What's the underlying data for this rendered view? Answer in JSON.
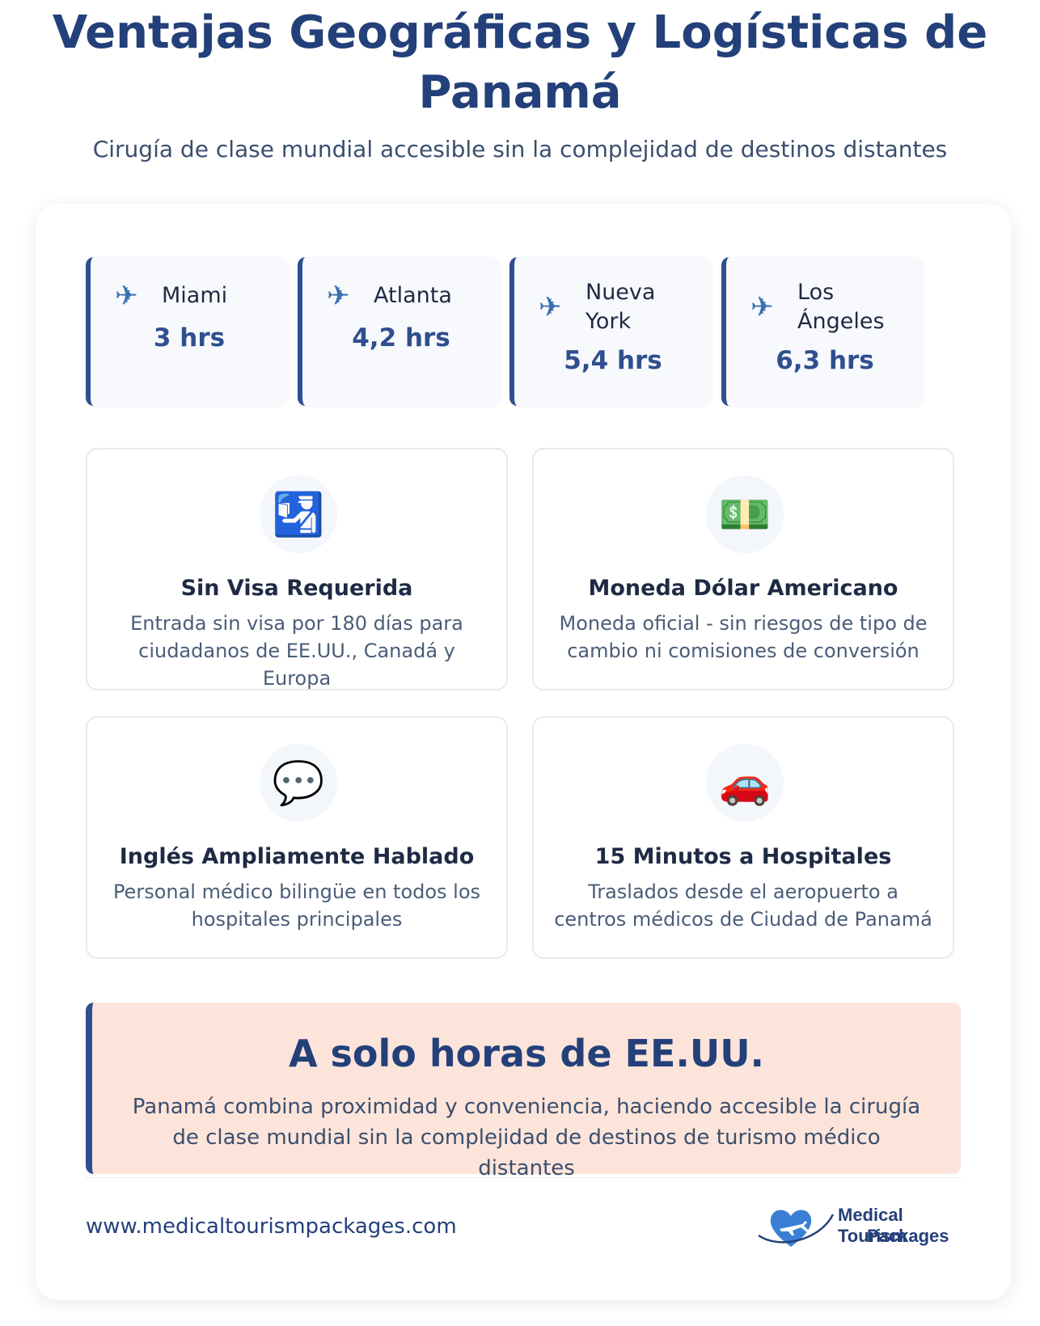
{
  "header": {
    "title": "Ventajas Geográficas y Logísticas de Panamá",
    "subtitle": "Cirugía de clase mundial accesible sin la complejidad de destinos distantes"
  },
  "flights": [
    {
      "city": "Miami",
      "time": "3 hrs",
      "icon": "airplane-icon"
    },
    {
      "city": "Atlanta",
      "time": "4,2 hrs",
      "icon": "airplane-icon"
    },
    {
      "city": "Nueva York",
      "time": "5,4 hrs",
      "icon": "airplane-icon"
    },
    {
      "city": "Los Ángeles",
      "time": "6,3 hrs",
      "icon": "airplane-icon"
    }
  ],
  "features": [
    {
      "icon": "passport-control-icon",
      "title": "Sin Visa Requerida",
      "desc": "Entrada sin visa por 180 días para ciudadanos de EE.UU., Canadá y Europa"
    },
    {
      "icon": "dollar-banknote-icon",
      "title": "Moneda Dólar Americano",
      "desc": "Moneda oficial - sin riesgos de tipo de cambio ni comisiones de conversión"
    },
    {
      "icon": "speech-bubble-icon",
      "title": "Inglés Ampliamente Hablado",
      "desc": "Personal médico bilingüe en todos los hospitales principales"
    },
    {
      "icon": "car-icon",
      "title": "15 Minutos a Hospitales",
      "desc": "Traslados desde el aeropuerto a centros médicos de Ciudad de Panamá"
    }
  ],
  "banner": {
    "title": "A solo horas de EE.UU.",
    "desc": "Panamá combina proximidad y conveniencia, haciendo accesible la cirugía de clase mundial sin la complejidad de destinos de turismo médico distantes"
  },
  "footer": {
    "url": "www.medicaltourismpackages.com",
    "logo_line1": "Medical Tourism",
    "logo_line2": "Packages"
  },
  "colors": {
    "primary": "#24407a",
    "accent_border": "#2f4f8f",
    "banner_bg": "#fde4da",
    "city_bg": "#f7f9fc"
  }
}
